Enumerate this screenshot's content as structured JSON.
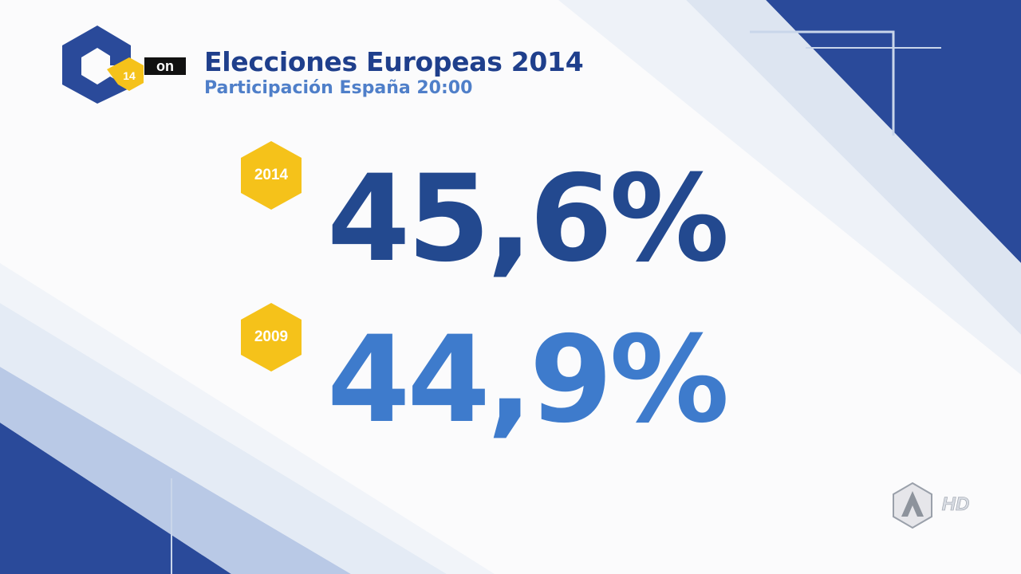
{
  "header": {
    "title": "Elecciones Europeas 2014",
    "subtitle": "Participación España 20:00",
    "logo_badge_text": "14",
    "partner_logo_text": "on"
  },
  "results": [
    {
      "year": "2014",
      "value": "45,6%"
    },
    {
      "year": "2009",
      "value": "44,9%"
    }
  ],
  "channel_watermark": {
    "badge": "HD"
  },
  "colors": {
    "dark_blue": "#23498f",
    "light_blue": "#3e7bcc",
    "badge_yellow": "#f5c21a",
    "title_blue": "#1f3f8c",
    "subtitle_blue": "#4f7fc9"
  }
}
